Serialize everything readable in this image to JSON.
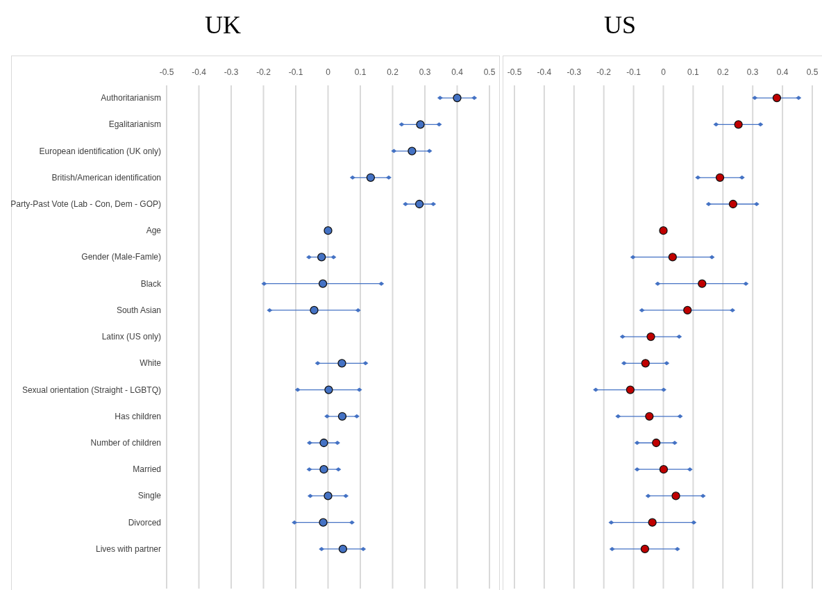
{
  "chart_data": [
    {
      "type": "scatter",
      "title": "UK",
      "categories": [
        "Authoritarianism",
        "Egalitarianism",
        "European identification (UK only)",
        "British/American identification",
        "Party-Past Vote (Lab - Con, Dem - GOP)",
        "Age",
        "Gender (Male-Famle)",
        "Black",
        "South Asian",
        "Latinx (US only)",
        "White",
        "Sexual orientation (Straight - LGBTQ)",
        "Has children",
        "Number of children",
        "Married",
        "Single",
        "Divorced",
        "Lives with partner"
      ],
      "orientation": "horizontal",
      "xlim": [
        -0.5,
        0.5
      ],
      "xticks": [
        -0.5,
        -0.4,
        -0.3,
        -0.2,
        -0.1,
        0,
        0.1,
        0.2,
        0.3,
        0.4,
        0.5
      ],
      "grid": "x",
      "marker": "circle",
      "series": [
        {
          "color": "#4472c4",
          "values": [
            0.4,
            0.286,
            0.26,
            0.132,
            0.283,
            0,
            -0.02,
            -0.016,
            -0.043,
            null,
            0.043,
            0.002,
            0.044,
            -0.013,
            -0.013,
            0,
            -0.015,
            0.046
          ],
          "errors": [
            [
              0.347,
              0.453
            ],
            [
              0.228,
              0.344
            ],
            [
              0.204,
              0.314
            ],
            [
              0.076,
              0.188
            ],
            [
              0.24,
              0.326
            ],
            null,
            [
              -0.059,
              0.017
            ],
            [
              -0.198,
              0.165
            ],
            [
              -0.181,
              0.093
            ],
            null,
            [
              -0.032,
              0.116
            ],
            [
              -0.094,
              0.097
            ],
            [
              -0.003,
              0.089
            ],
            [
              -0.057,
              0.029
            ],
            [
              -0.058,
              0.032
            ],
            [
              -0.055,
              0.055
            ],
            [
              -0.104,
              0.074
            ],
            [
              -0.02,
              0.109
            ]
          ]
        }
      ]
    },
    {
      "type": "scatter",
      "title": "US",
      "categories": [
        null,
        null,
        null,
        null,
        null,
        null,
        null,
        null,
        null,
        null,
        null,
        null,
        null,
        null,
        null,
        null,
        null,
        null
      ],
      "orientation": "horizontal",
      "xlim": [
        -0.5,
        0.5
      ],
      "xticks": [
        -0.5,
        -0.4,
        -0.3,
        -0.2,
        -0.1,
        0,
        0.1,
        0.2,
        0.3,
        0.4,
        0.5
      ],
      "grid": "x",
      "marker": "circle",
      "series": [
        {
          "color": "#c00000",
          "values": [
            0.381,
            0.252,
            null,
            0.19,
            0.234,
            0,
            0.031,
            0.13,
            0.081,
            -0.042,
            -0.06,
            -0.111,
            -0.047,
            -0.024,
            0.001,
            0.042,
            -0.037,
            -0.062
          ],
          "errors": [
            [
              0.307,
              0.454
            ],
            [
              0.177,
              0.326
            ],
            null,
            [
              0.116,
              0.264
            ],
            [
              0.152,
              0.313
            ],
            null,
            [
              -0.102,
              0.163
            ],
            [
              -0.019,
              0.277
            ],
            [
              -0.072,
              0.232
            ],
            [
              -0.137,
              0.053
            ],
            [
              -0.132,
              0.011
            ],
            [
              -0.227,
              0.001
            ],
            [
              -0.152,
              0.056
            ],
            [
              -0.088,
              0.038
            ],
            [
              -0.088,
              0.089
            ],
            [
              -0.051,
              0.133
            ],
            [
              -0.175,
              0.102
            ],
            [
              -0.172,
              0.047
            ]
          ]
        }
      ]
    }
  ]
}
